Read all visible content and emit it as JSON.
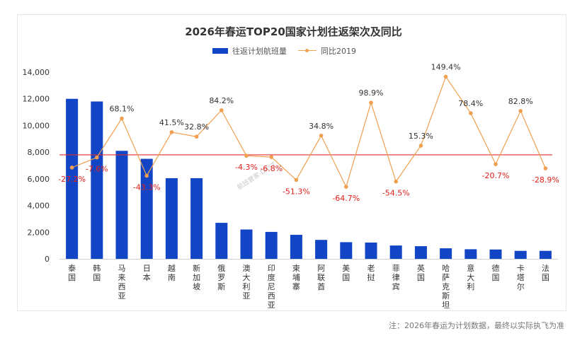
{
  "chart_data": {
    "type": "bar",
    "title": "2026年春运TOP20国家计划往返架次及同比",
    "legend": [
      "往返计划航班量",
      "同比2019"
    ],
    "categories": [
      "泰国",
      "韩国",
      "马来西亚",
      "日本",
      "越南",
      "新加坡",
      "俄罗斯",
      "澳大利亚",
      "印度尼西亚",
      "柬埔寨",
      "阿联酋",
      "美国",
      "老挝",
      "菲律宾",
      "英国",
      "哈萨克斯坦",
      "意大利",
      "德国",
      "卡塔尔",
      "法国"
    ],
    "series": [
      {
        "name": "往返计划航班量",
        "type": "bar",
        "values": [
          12000,
          11800,
          8100,
          7500,
          6050,
          6050,
          2700,
          2200,
          2020,
          1800,
          1420,
          1250,
          1220,
          1000,
          950,
          790,
          720,
          700,
          600,
          600
        ]
      },
      {
        "name": "同比2019",
        "type": "line",
        "values": [
          -27.2,
          -7.6,
          68.1,
          -43.3,
          41.5,
          32.8,
          84.2,
          -4.3,
          -6.8,
          -51.3,
          34.8,
          -64.7,
          98.9,
          -54.5,
          15.3,
          149.4,
          78.4,
          -20.7,
          82.8,
          -28.9
        ],
        "labels": [
          "-27.2%",
          "-7.6%",
          "68.1%",
          "-43.3%",
          "41.5%",
          "32.8%",
          "84.2%",
          "-4.3%",
          "-6.8%",
          "-51.3%",
          "34.8%",
          "-64.7%",
          "98.9%",
          "-54.5%",
          "15.3%",
          "149.4%",
          "78.4%",
          "-20.7%",
          "82.8%",
          "-28.9%"
        ]
      }
    ],
    "yticks": [
      "14,000",
      "12,000",
      "10,000",
      "8,000",
      "6,000",
      "4,000",
      "2,000",
      "0"
    ],
    "ylim": [
      0,
      14000
    ],
    "reference_line": 7800,
    "grid": false,
    "legend_position": "top"
  },
  "watermark": "航班管家·DAST",
  "footnote": "注：2026年春运为计划数据，最终以实际执飞为准",
  "colors": {
    "bar": "#1244c6",
    "line": "#f0a050",
    "reference": "#e03030",
    "negative_label": "#e0201a"
  }
}
